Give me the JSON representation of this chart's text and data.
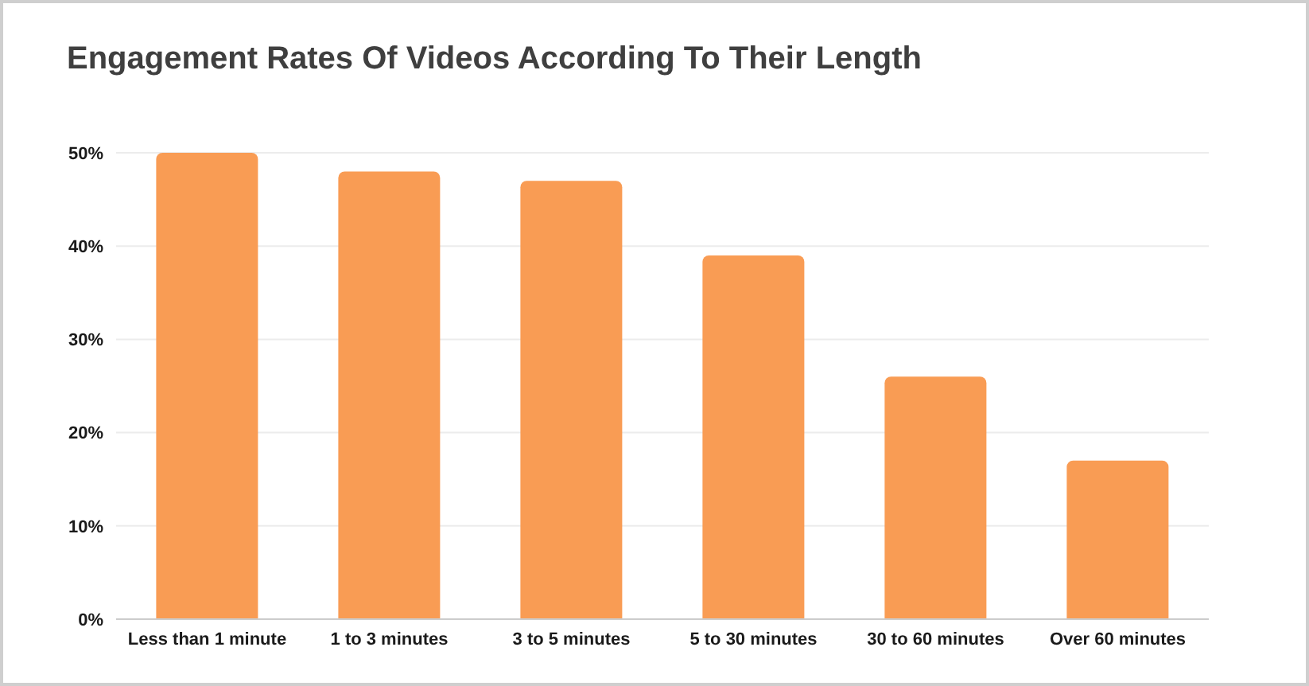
{
  "chart_data": {
    "type": "bar",
    "title": "Engagement Rates Of Videos According To Their Length",
    "categories": [
      "Less than 1 minute",
      "1 to 3 minutes",
      "3 to 5 minutes",
      "5 to 30 minutes",
      "30 to 60 minutes",
      "Over 60 minutes"
    ],
    "values": [
      50,
      48,
      47,
      39,
      26,
      17
    ],
    "color": "#f99c54",
    "ylim": [
      0,
      50
    ],
    "yticks": [
      {
        "value": 0,
        "label": "0%"
      },
      {
        "value": 10,
        "label": "10%"
      },
      {
        "value": 20,
        "label": "20%"
      },
      {
        "value": 30,
        "label": "30%"
      },
      {
        "value": 40,
        "label": "40%"
      },
      {
        "value": 50,
        "label": "50%"
      }
    ],
    "grid": "y"
  }
}
